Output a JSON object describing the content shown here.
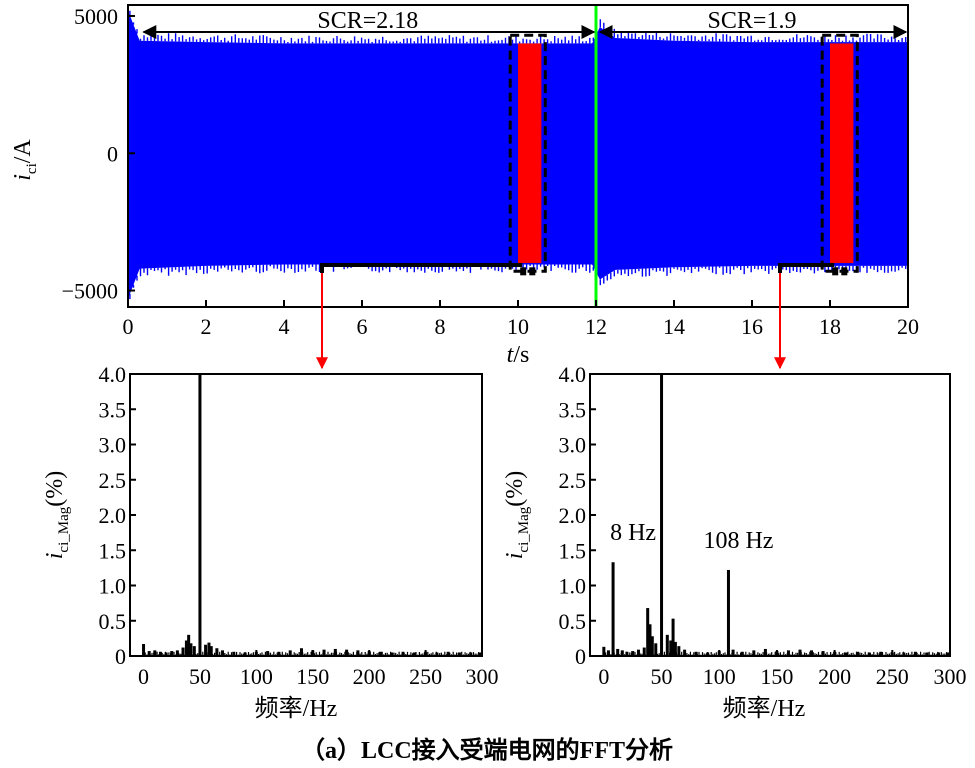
{
  "caption": "（a）LCC接入受端电网的FFT分析",
  "colors": {
    "signal": "#0000FF",
    "highlight": "#FF0000",
    "switch_line": "#00FF00",
    "axis": "#000000"
  },
  "chart_data": [
    {
      "type": "area",
      "title": "",
      "xlabel": "t/s",
      "ylabel": "i_ci/A",
      "ylabel_main": "i",
      "ylabel_sub": "ci",
      "ylabel_unit": "/A",
      "xlim": [
        0,
        20
      ],
      "ylim": [
        -5600,
        5400
      ],
      "xticks": [
        0,
        2,
        4,
        6,
        8,
        10,
        12,
        14,
        16,
        18,
        20
      ],
      "yticks": [
        {
          "value": 5000,
          "label": "5000"
        },
        {
          "value": 0,
          "label": "0"
        },
        {
          "value": -5000,
          "label": "−5000"
        }
      ],
      "series": [
        {
          "x": [
            0,
            0.3,
            2,
            4,
            6,
            8,
            10,
            11.9,
            12.1,
            12.5,
            14,
            16,
            18,
            20
          ],
          "upper": [
            5200,
            4100,
            4050,
            4000,
            4000,
            4000,
            4000,
            4000,
            4600,
            4200,
            4100,
            4050,
            4050,
            4050
          ],
          "lower": [
            -5300,
            -4200,
            -4100,
            -4050,
            -4050,
            -4050,
            -4050,
            -4050,
            -4600,
            -4250,
            -4150,
            -4100,
            -4100,
            -4100
          ]
        }
      ],
      "annotations": [
        {
          "text": "SCR=2.18",
          "x_start": 0.3,
          "x_end": 12
        },
        {
          "text": "SCR=1.9",
          "x_start": 12,
          "x_end": 20
        }
      ],
      "switch_time": 12,
      "fft_windows": [
        {
          "x_start": 9.8,
          "x_end": 10.7,
          "red_start": 10.0,
          "red_end": 10.6
        },
        {
          "x_start": 17.8,
          "x_end": 18.7,
          "red_start": 18.0,
          "red_end": 18.6
        }
      ]
    },
    {
      "type": "bar",
      "xlabel": "频率/Hz",
      "ylabel": "i_ci_Mag(%)",
      "ylabel_main": "i",
      "ylabel_sub": "ci_Mag",
      "ylabel_unit": "(%)",
      "xlim": [
        -12,
        300
      ],
      "ylim": [
        0,
        4.0
      ],
      "xticks": [
        0,
        50,
        100,
        150,
        200,
        250,
        300
      ],
      "yticks": [
        "0",
        "0.5",
        "1.0",
        "1.5",
        "2.0",
        "2.5",
        "3.0",
        "3.5",
        "4.0"
      ],
      "x": [
        0,
        5,
        10,
        15,
        20,
        25,
        30,
        35,
        38,
        40,
        42,
        45,
        50,
        55,
        58,
        60,
        65,
        70,
        80,
        90,
        100,
        110,
        120,
        130,
        140,
        150,
        160,
        170,
        180,
        190,
        200,
        210,
        220,
        230,
        240,
        250,
        260,
        270,
        280,
        290,
        298
      ],
      "values": [
        0.17,
        0.07,
        0.08,
        0.06,
        0.05,
        0.07,
        0.08,
        0.12,
        0.22,
        0.3,
        0.18,
        0.14,
        4.0,
        0.16,
        0.19,
        0.14,
        0.11,
        0.08,
        0.06,
        0.05,
        0.06,
        0.07,
        0.06,
        0.08,
        0.11,
        0.08,
        0.09,
        0.1,
        0.09,
        0.08,
        0.07,
        0.06,
        0.05,
        0.06,
        0.05,
        0.06,
        0.05,
        0.06,
        0.05,
        0.05,
        0.05
      ],
      "annotations": []
    },
    {
      "type": "bar",
      "xlabel": "频率/Hz",
      "ylabel": "i_ci_Mag(%)",
      "ylabel_main": "i",
      "ylabel_sub": "ci_Mag",
      "ylabel_unit": "(%)",
      "xlim": [
        -12,
        300
      ],
      "ylim": [
        0,
        4.0
      ],
      "xticks": [
        0,
        50,
        100,
        150,
        200,
        250,
        300
      ],
      "yticks": [
        "0",
        "0.5",
        "1.0",
        "1.5",
        "2.0",
        "2.5",
        "3.0",
        "3.5",
        "4.0"
      ],
      "x": [
        0,
        4,
        8,
        12,
        16,
        20,
        25,
        30,
        35,
        38,
        40,
        42,
        45,
        50,
        55,
        58,
        60,
        62,
        65,
        70,
        80,
        90,
        100,
        108,
        112,
        120,
        130,
        140,
        150,
        160,
        170,
        180,
        190,
        200,
        210,
        220,
        230,
        240,
        250,
        260,
        270,
        280,
        290,
        298
      ],
      "values": [
        0.13,
        0.08,
        1.33,
        0.1,
        0.08,
        0.06,
        0.07,
        0.09,
        0.12,
        0.68,
        0.45,
        0.28,
        0.18,
        4.0,
        0.3,
        0.22,
        0.53,
        0.2,
        0.14,
        0.09,
        0.06,
        0.05,
        0.07,
        1.22,
        0.09,
        0.06,
        0.08,
        0.1,
        0.07,
        0.08,
        0.09,
        0.08,
        0.07,
        0.06,
        0.05,
        0.06,
        0.05,
        0.06,
        0.05,
        0.05,
        0.06,
        0.05,
        0.05,
        0.05
      ],
      "annotations": [
        {
          "text": "8 Hz",
          "x": 8
        },
        {
          "text": "108 Hz",
          "x": 108
        }
      ]
    }
  ]
}
